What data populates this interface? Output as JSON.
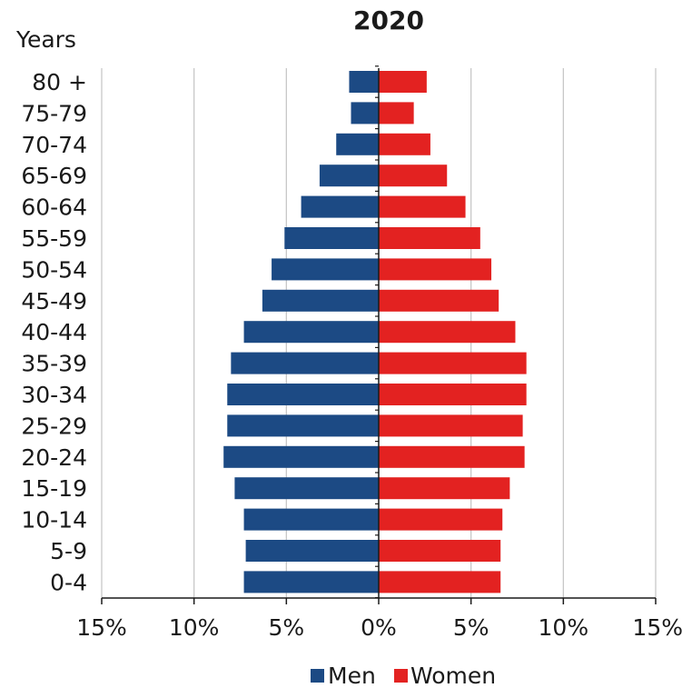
{
  "chart_data": {
    "type": "bar",
    "orientation": "horizontal",
    "title": "2020",
    "ylabel": "Years",
    "categories": [
      "80 +",
      "75-79",
      "70-74",
      "65-69",
      "60-64",
      "55-59",
      "50-54",
      "45-49",
      "40-44",
      "35-39",
      "30-34",
      "25-29",
      "20-24",
      "15-19",
      "10-14",
      "5-9",
      "0-4"
    ],
    "series": [
      {
        "name": "Men",
        "color": "#1c4a84",
        "values": [
          1.6,
          1.5,
          2.3,
          3.2,
          4.2,
          5.1,
          5.8,
          6.3,
          7.3,
          8.0,
          8.2,
          8.2,
          8.4,
          7.8,
          7.3,
          7.2,
          7.3
        ]
      },
      {
        "name": "Women",
        "color": "#e32221",
        "values": [
          2.6,
          1.9,
          2.8,
          3.7,
          4.7,
          5.5,
          6.1,
          6.5,
          7.4,
          8.0,
          8.0,
          7.8,
          7.9,
          7.1,
          6.7,
          6.6,
          6.6
        ]
      }
    ],
    "xlim": [
      -15,
      15
    ],
    "xticks": [
      -15,
      -10,
      -5,
      0,
      5,
      10,
      15
    ],
    "xtick_labels": [
      "15%",
      "10%",
      "5%",
      "0%",
      "5%",
      "10%",
      "15%"
    ],
    "grid": true,
    "legend_position": "bottom"
  }
}
